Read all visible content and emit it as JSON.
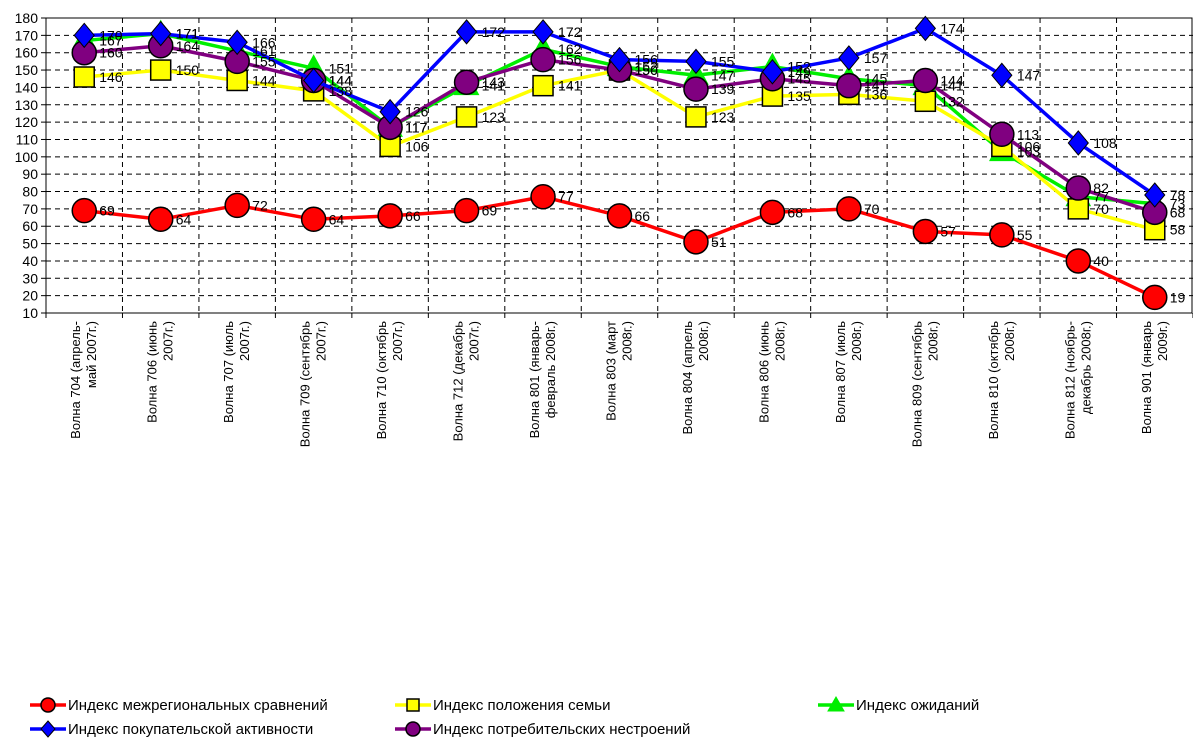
{
  "chart_data": {
    "type": "line",
    "title": "",
    "xlabel": "",
    "ylabel": "",
    "ylim": [
      10,
      180
    ],
    "ytick_step": 10,
    "grid": true,
    "legend_position": "bottom",
    "categories": [
      "Волна 704 (апрель-май 2007г.)",
      "Волна 706 (июнь 2007г.)",
      "Волна 707 (июль 2007г.)",
      "Волна 709 (сентябрь 2007г.)",
      "Волна 710 (октябрь 2007г.)",
      "Волна 712 (декабрь 2007г.)",
      "Волна 801 (январь-февраль 2008г.)",
      "Волна 803 (март 2008г.)",
      "Волна 804 (апрель 2008г.)",
      "Волна 806 (июнь 2008г.)",
      "Волна 807 (июль 2008г.)",
      "Волна 809 (сентябрь 2008г.)",
      "Волна 810 (октябрь 2008г.)",
      "Волна 812 (ноябрь-декабрь 2008г.)",
      "Волна 901 (январь 2009г.)"
    ],
    "category_lines": [
      [
        "Волна 704 (апрель-",
        "май 2007г.)"
      ],
      [
        "Волна 706 (июнь",
        "2007г.)"
      ],
      [
        "Волна 707 (июль",
        "2007г.)"
      ],
      [
        "Волна 709 (сентябрь",
        "2007г.)"
      ],
      [
        "Волна 710 (октябрь",
        "2007г.)"
      ],
      [
        "Волна 712 (декабрь",
        "2007г.)"
      ],
      [
        "Волна 801 (январь-",
        "февраль 2008г.)"
      ],
      [
        "Волна 803 (март",
        "2008г.)"
      ],
      [
        "Волна 804 (апрель",
        "2008г.)"
      ],
      [
        "Волна 806 (июнь",
        "2008г.)"
      ],
      [
        "Волна 807 (июль",
        "2008г.)"
      ],
      [
        "Волна 809 (сентябрь",
        "2008г.)"
      ],
      [
        "Волна 810 (октябрь",
        "2008г.)"
      ],
      [
        "Волна 812 (ноябрь-",
        "декабрь 2008г.)"
      ],
      [
        "Волна 901 (январь",
        "2009г.)"
      ]
    ],
    "series": [
      {
        "name": "Индекс ожиданий",
        "color": "#00ee00",
        "marker": "triangle",
        "values": [
          167,
          171,
          161,
          151,
          117,
          141,
          162,
          152,
          147,
          152,
          145,
          141,
          103,
          77,
          73
        ]
      },
      {
        "name": "Индекс положения семьи",
        "color": "#ffff00",
        "marker": "square",
        "values": [
          146,
          150,
          144,
          138,
          106,
          123,
          141,
          150,
          123,
          135,
          136,
          132,
          106,
          70,
          58
        ]
      },
      {
        "name": "Индекс потребительских нестроений",
        "color": "#800080",
        "marker": "circle",
        "values": [
          160,
          164,
          155,
          144,
          117,
          143,
          156,
          150,
          139,
          145,
          141,
          144,
          113,
          82,
          68
        ]
      },
      {
        "name": "Индекс покупательской активности",
        "color": "#0000ff",
        "marker": "diamond",
        "values": [
          170,
          171,
          166,
          144,
          126,
          172,
          172,
          156,
          155,
          149,
          157,
          174,
          147,
          108,
          78
        ]
      },
      {
        "name": "Индекс межрегиональных сравнений",
        "color": "#ff0000",
        "marker": "circle",
        "values": [
          69,
          64,
          72,
          64,
          66,
          69,
          77,
          66,
          51,
          68,
          70,
          57,
          55,
          40,
          19
        ]
      }
    ],
    "legend": [
      "Индекс межрегиональных сравнений",
      "Индекс положения семьи",
      "Индекс ожиданий",
      "Индекс покупательской активности",
      "Индекс потребительских нестроений"
    ]
  }
}
